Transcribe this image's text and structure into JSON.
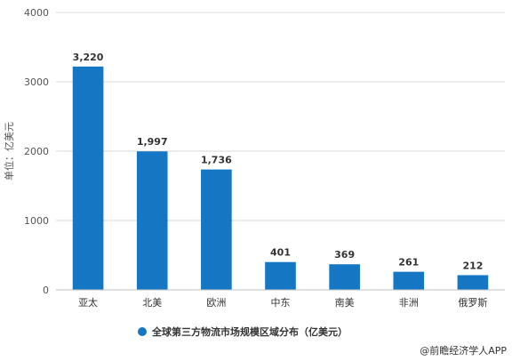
{
  "chart_data": {
    "type": "bar",
    "categories": [
      "亚太",
      "北美",
      "欧洲",
      "中东",
      "南美",
      "非洲",
      "俄罗斯"
    ],
    "series": [
      {
        "name": "全球第三方物流市场规模区域分布（亿美元）",
        "values": [
          3220,
          1997,
          1736,
          401,
          369,
          261,
          212
        ],
        "value_labels": [
          "3,220",
          "1,997",
          "1,736",
          "401",
          "369",
          "261",
          "212"
        ]
      }
    ],
    "ylabel": "单位：亿美元",
    "ylim": [
      0,
      4000
    ],
    "yticks": [
      0,
      1000,
      2000,
      3000,
      4000
    ],
    "grid": true,
    "legend_position": "bottom",
    "bar_color": "#1577c4"
  },
  "credit": "@前瞻经济学人APP"
}
